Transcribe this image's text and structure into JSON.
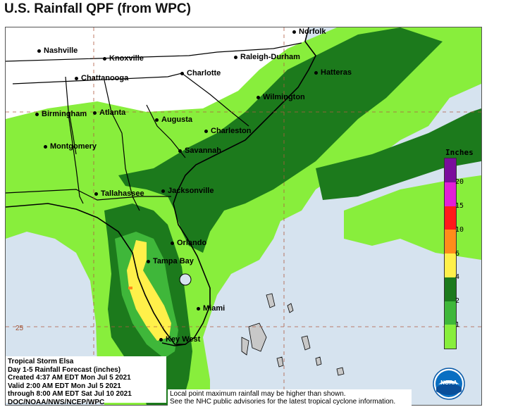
{
  "title": "U.S. Rainfall QPF (from WPC)",
  "cities": [
    {
      "name": "Norfolk"
    },
    {
      "name": "Nashville"
    },
    {
      "name": "Knoxville"
    },
    {
      "name": "Raleigh-Durham"
    },
    {
      "name": "Hatteras"
    },
    {
      "name": "Chattanooga"
    },
    {
      "name": "Charlotte"
    },
    {
      "name": "Wilmington"
    },
    {
      "name": "Birmingham"
    },
    {
      "name": "Atlanta"
    },
    {
      "name": "Augusta"
    },
    {
      "name": "Charleston"
    },
    {
      "name": "Montgomery"
    },
    {
      "name": "Savannah"
    },
    {
      "name": "Tallahassee"
    },
    {
      "name": "Jacksonville"
    },
    {
      "name": "Orlando"
    },
    {
      "name": "Tampa Bay"
    },
    {
      "name": "Miami"
    },
    {
      "name": "Key West"
    }
  ],
  "latitude_label": "25",
  "legend": {
    "title": "Inches",
    "colors": [
      "#7a0d9c",
      "#e21fd7",
      "#ff1a1a",
      "#ff8c1a",
      "#fff04a",
      "#1c7a1c",
      "#3fb73a",
      "#88ee3c"
    ],
    "ticks": [
      "20",
      "15",
      "10",
      "6",
      "4",
      "2",
      "1"
    ]
  },
  "info": {
    "storm": "Tropical Storm Elsa",
    "product": "Day 1-5 Rainfall Forecast (inches)",
    "created": "Created 4:37 AM EDT Mon Jul 5 2021",
    "valid": "Valid 2:00 AM EDT Mon Jul 5 2021",
    "through": "through 8:00 AM EDT Sat Jul 10 2021",
    "agency": "DOC/NOAA/NWS/NCEP/WPC"
  },
  "disclaimer": {
    "line1": "Local point maximum rainfall may be higher than shown.",
    "line2": "See the NHC public advisories for the latest tropical cyclone information."
  },
  "logo_text": "NOAA"
}
